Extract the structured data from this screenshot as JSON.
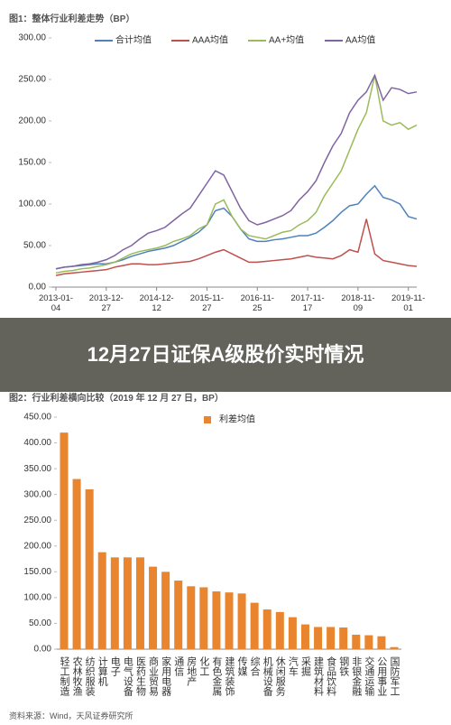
{
  "overlay_title": "12月27日证保A级股价实时情况",
  "figure_titles": [
    "图1：整体行业利差走势（BP）",
    "图2：行业利差横向比较（2019 年 12 月 27 日，BP）"
  ],
  "source": "资料来源：Wind，天风证券研究所",
  "chart_data": [
    {
      "type": "line",
      "categories": [
        "2013-01-04",
        null,
        null,
        null,
        null,
        null,
        "2013-12-27",
        null,
        null,
        null,
        null,
        null,
        "2014-12-12",
        null,
        null,
        null,
        null,
        null,
        "2015-11-27",
        null,
        null,
        null,
        null,
        null,
        "2016-11-25",
        null,
        null,
        null,
        null,
        null,
        "2017-11-17",
        null,
        null,
        null,
        null,
        null,
        "2018-11-09",
        null,
        null,
        null,
        null,
        null,
        "2019-11-01",
        null
      ],
      "series": [
        {
          "name": "合计均值",
          "color": "#4f81bd",
          "values": [
            22,
            24,
            25,
            26,
            27,
            28,
            28,
            30,
            33,
            37,
            40,
            43,
            45,
            47,
            50,
            55,
            60,
            66,
            75,
            92,
            95,
            85,
            70,
            58,
            55,
            55,
            57,
            58,
            60,
            62,
            62,
            65,
            72,
            80,
            90,
            98,
            100,
            112,
            122,
            108,
            105,
            100,
            85,
            82
          ]
        },
        {
          "name": "AAA均值",
          "color": "#c0504d",
          "values": [
            14,
            16,
            17,
            18,
            19,
            20,
            21,
            24,
            26,
            28,
            28,
            27,
            27,
            28,
            29,
            30,
            31,
            34,
            38,
            42,
            45,
            40,
            35,
            30,
            30,
            31,
            32,
            33,
            34,
            36,
            38,
            36,
            35,
            34,
            38,
            45,
            42,
            82,
            40,
            32,
            30,
            28,
            26,
            25
          ]
        },
        {
          "name": "AA+均值",
          "color": "#9bbb59",
          "values": [
            17,
            19,
            20,
            22,
            23,
            25,
            27,
            30,
            35,
            40,
            43,
            45,
            47,
            50,
            55,
            58,
            62,
            70,
            75,
            100,
            105,
            85,
            70,
            62,
            60,
            58,
            62,
            66,
            68,
            75,
            80,
            90,
            110,
            125,
            140,
            165,
            190,
            210,
            255,
            200,
            195,
            198,
            190,
            195
          ]
        },
        {
          "name": "AA均值",
          "color": "#8064a2",
          "values": [
            22,
            24,
            25,
            27,
            28,
            30,
            33,
            38,
            45,
            50,
            58,
            65,
            68,
            72,
            80,
            88,
            95,
            110,
            125,
            140,
            135,
            115,
            95,
            80,
            75,
            78,
            82,
            86,
            92,
            105,
            115,
            128,
            150,
            170,
            185,
            210,
            225,
            235,
            255,
            225,
            240,
            238,
            233,
            235
          ]
        }
      ],
      "ylim": [
        0,
        300
      ],
      "yticks": [
        {
          "value": 0,
          "label": "0.00"
        },
        {
          "value": 50,
          "label": "50.00"
        },
        {
          "value": 100,
          "label": "100.00"
        },
        {
          "value": 150,
          "label": "150.00"
        },
        {
          "value": 200,
          "label": "200.00"
        },
        {
          "value": 250,
          "label": "250.00"
        },
        {
          "value": 300,
          "label": "300.00"
        }
      ]
    },
    {
      "type": "bar",
      "categories": [
        "轻工制造",
        "农林牧渔",
        "纺织服装",
        "计算机",
        "电子",
        "电气设备",
        "医药生物",
        "商业贸易",
        "家用电器",
        "通信",
        "房地产",
        "化工",
        "有色金属",
        "建筑装饰",
        "传媒",
        "综合",
        "机械设备",
        "休闲服务",
        "汽车",
        "采掘",
        "建筑材料",
        "食品饮料",
        "钢铁",
        "非银金融",
        "交通运输",
        "公用事业",
        "国防军工"
      ],
      "series": [
        {
          "name": "利差均值",
          "color": "#e8852e",
          "values": [
            420,
            330,
            310,
            188,
            178,
            178,
            178,
            160,
            150,
            133,
            122,
            120,
            112,
            110,
            108,
            90,
            77,
            72,
            62,
            48,
            43,
            43,
            42,
            28,
            27,
            25,
            4
          ]
        }
      ],
      "ylim": [
        0,
        450
      ],
      "yticks": [
        {
          "value": 0,
          "label": "0.00"
        },
        {
          "value": 50,
          "label": "50.00"
        },
        {
          "value": 100,
          "label": "100.00"
        },
        {
          "value": 150,
          "label": "150.00"
        },
        {
          "value": 200,
          "label": "200.00"
        },
        {
          "value": 250,
          "label": "250.00"
        },
        {
          "value": 300,
          "label": "300.00"
        },
        {
          "value": 350,
          "label": "350.00"
        },
        {
          "value": 400,
          "label": "400.00"
        },
        {
          "value": 450,
          "label": "450.00"
        }
      ]
    }
  ]
}
